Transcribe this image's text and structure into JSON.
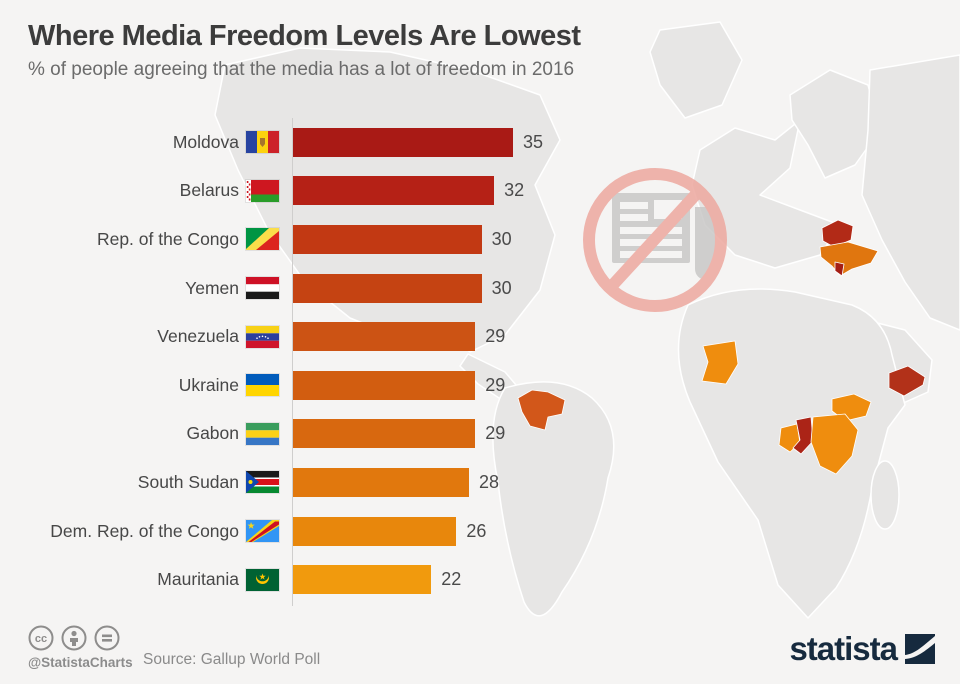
{
  "header": {
    "title": "Where Media Freedom Levels Are Lowest",
    "subtitle": "% of people agreeing that the media has a lot of freedom in 2016"
  },
  "chart_data": {
    "type": "bar",
    "orientation": "horizontal",
    "title": "Where Media Freedom Levels Are Lowest",
    "subtitle": "% of people agreeing that the media has a lot of freedom in 2016",
    "unit": "% agreeing media has a lot of freedom",
    "xlim": [
      0,
      38
    ],
    "grid": false,
    "legend": "none",
    "categories": [
      "Moldova",
      "Belarus",
      "Rep. of the Congo",
      "Yemen",
      "Venezuela",
      "Ukraine",
      "Gabon",
      "South Sudan",
      "Dem. Rep. of the Congo",
      "Mauritania"
    ],
    "values": [
      35,
      32,
      30,
      30,
      29,
      29,
      29,
      28,
      26,
      22
    ],
    "bar_colors": [
      "#a91a15",
      "#b52116",
      "#c23913",
      "#c54312",
      "#cc5314",
      "#d25d10",
      "#d8680f",
      "#e1780d",
      "#e8870c",
      "#f19a0d"
    ],
    "flag_icons": [
      "flag-moldova",
      "flag-belarus",
      "flag-rep-congo",
      "flag-yemen",
      "flag-venezuela",
      "flag-ukraine",
      "flag-gabon",
      "flag-south-sudan",
      "flag-dr-congo",
      "flag-mauritania"
    ],
    "source": "Gallup World Poll"
  },
  "map": {
    "base_color": "#e7e6e5",
    "border_color": "#ffffff",
    "highlights": [
      {
        "country": "Belarus",
        "color": "#b22a17"
      },
      {
        "country": "Moldova",
        "color": "#a51e14"
      },
      {
        "country": "Ukraine",
        "color": "#e0760f"
      },
      {
        "country": "Venezuela",
        "color": "#d2571a"
      },
      {
        "country": "Mauritania",
        "color": "#ef8d0e"
      },
      {
        "country": "Yemen",
        "color": "#b23119"
      },
      {
        "country": "South Sudan",
        "color": "#ef8d0e"
      },
      {
        "country": "Gabon",
        "color": "#ef8d0e"
      },
      {
        "country": "Rep. of the Congo",
        "color": "#ab2417"
      },
      {
        "country": "Dem. Rep. of the Congo",
        "color": "#ef8d0e"
      }
    ]
  },
  "watermark": {
    "icon": "no-press-icon",
    "circle_color": "#eda89f",
    "newspaper_color": "#c9c8c7"
  },
  "footer": {
    "license_icons": [
      "cc-icon",
      "attribution-icon",
      "no-derivatives-icon"
    ],
    "handle": "@StatistaCharts",
    "source_label": "Source: Gallup World Poll",
    "brand": "statista",
    "brand_color": "#162a3e"
  }
}
